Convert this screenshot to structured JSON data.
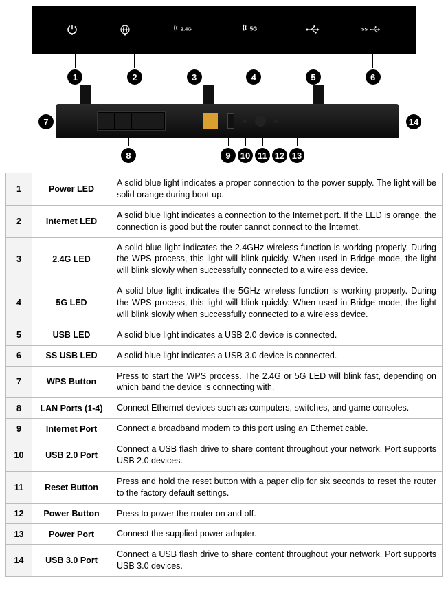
{
  "led_icons": [
    {
      "name": "power-led-icon",
      "label": ""
    },
    {
      "name": "internet-led-icon",
      "label": ""
    },
    {
      "name": "wifi-24g-led-icon",
      "label": "2.4G"
    },
    {
      "name": "wifi-5g-led-icon",
      "label": "5G"
    },
    {
      "name": "usb-led-icon",
      "label": ""
    },
    {
      "name": "ss-usb-led-icon",
      "label": ""
    }
  ],
  "front_callouts": [
    "1",
    "2",
    "3",
    "4",
    "5",
    "6"
  ],
  "rear_callouts": {
    "c7": "7",
    "c8": "8",
    "c9": "9",
    "c10": "10",
    "c11": "11",
    "c12": "12",
    "c13": "13",
    "c14": "14"
  },
  "rows": [
    {
      "num": "1",
      "name": "Power LED",
      "desc": "A solid blue light indicates a proper connection to the power supply. The light will be solid orange during boot-up."
    },
    {
      "num": "2",
      "name": "Internet LED",
      "desc": "A solid blue light indicates a connection to the Internet port. If the LED is orange, the connection is good but the router cannot connect to the Internet."
    },
    {
      "num": "3",
      "name": "2.4G LED",
      "desc": "A solid blue light indicates the 2.4GHz wireless function is working properly. During the WPS process, this light will blink quickly. When used in Bridge mode, the light will blink slowly when successfully connected to a wireless device."
    },
    {
      "num": "4",
      "name": "5G LED",
      "desc": "A solid blue light indicates the 5GHz wireless function is working properly. During the WPS process, this light will blink quickly. When used in Bridge mode, the light will blink slowly when successfully connected to a wireless device."
    },
    {
      "num": "5",
      "name": "USB LED",
      "desc": "A solid blue light indicates a USB 2.0 device is connected."
    },
    {
      "num": "6",
      "name": "SS USB LED",
      "desc": "A solid blue light indicates a USB 3.0 device is connected."
    },
    {
      "num": "7",
      "name": "WPS Button",
      "desc": "Press to start the WPS process. The 2.4G or 5G LED will blink fast, depending on which band the device is connecting with."
    },
    {
      "num": "8",
      "name": "LAN Ports (1-4)",
      "desc": "Connect Ethernet devices such as computers, switches, and game consoles."
    },
    {
      "num": "9",
      "name": "Internet Port",
      "desc": "Connect a broadband modem to this port using an Ethernet cable."
    },
    {
      "num": "10",
      "name": "USB 2.0 Port",
      "desc": "Connect a USB flash drive to share content throughout your network. Port supports USB 2.0 devices."
    },
    {
      "num": "11",
      "name": "Reset Button",
      "desc": "Press and hold the reset button with a paper clip for six seconds to reset the router to the factory default settings."
    },
    {
      "num": "12",
      "name": "Power Button",
      "desc": "Press to power the router on and off."
    },
    {
      "num": "13",
      "name": "Power Port",
      "desc": "Connect the supplied power adapter."
    },
    {
      "num": "14",
      "name": "USB 3.0 Port",
      "desc": "Connect a USB flash drive to share content throughout your network. Port supports USB 3.0 devices."
    }
  ],
  "colors": {
    "panel_bg": "#000000",
    "icon_fg": "#ffffff",
    "table_border": "#bbbbbb",
    "num_bg": "#f3f3f3",
    "wan_port": "#d9a030"
  }
}
